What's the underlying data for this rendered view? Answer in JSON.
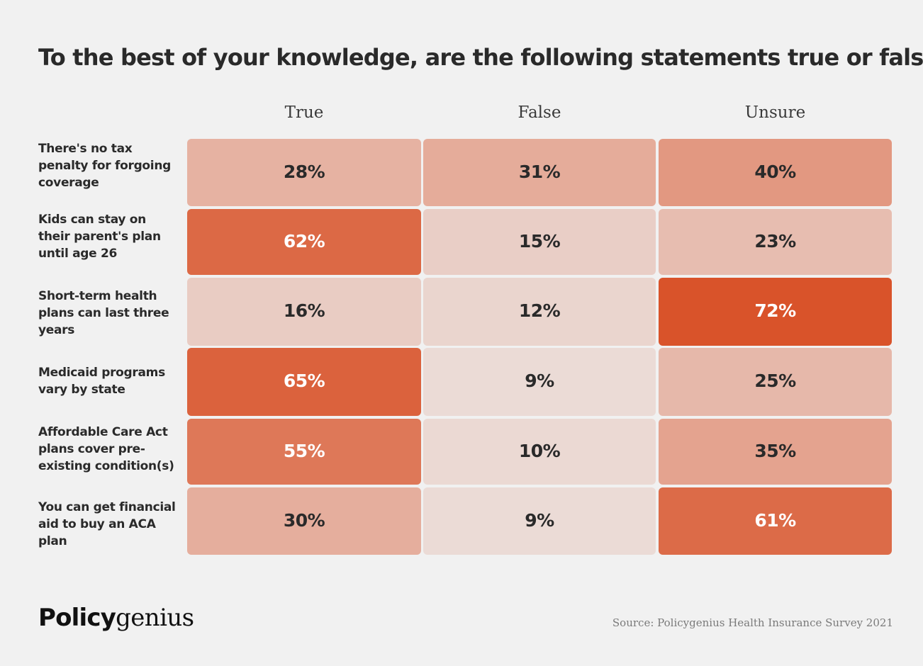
{
  "title": "To the best of your knowledge, are the following statements true or false?",
  "colors": {
    "background": "#f1f1f1",
    "accent": "#d9532a",
    "cell_min": "#ebdbd6",
    "text_dark": "#2a2a2a",
    "text_light": "#ffffff"
  },
  "chart_data": {
    "type": "heatmap",
    "title": "To the best of your knowledge, are the following statements true or false?",
    "columns": [
      "True",
      "False",
      "Unsure"
    ],
    "rows": [
      {
        "label": "There's no tax penalty for forgoing coverage",
        "values": [
          "28%",
          "31%",
          "40%"
        ],
        "numbers": [
          28,
          31,
          40
        ]
      },
      {
        "label": "Kids can stay on their parent's plan until age 26",
        "values": [
          "62%",
          "15%",
          "23%"
        ],
        "numbers": [
          62,
          15,
          23
        ]
      },
      {
        "label": "Short-term health plans can last three years",
        "values": [
          "16%",
          "12%",
          "72%"
        ],
        "numbers": [
          16,
          12,
          72
        ]
      },
      {
        "label": "Medicaid programs vary by state",
        "values": [
          "65%",
          "9%",
          "25%"
        ],
        "numbers": [
          65,
          9,
          25
        ]
      },
      {
        "label": "Affordable Care Act plans cover pre-existing condition(s)",
        "values": [
          "55%",
          "10%",
          "35%"
        ],
        "numbers": [
          55,
          10,
          35
        ]
      },
      {
        "label": "You can get financial aid to buy an ACA plan",
        "values": [
          "30%",
          "9%",
          "61%"
        ],
        "numbers": [
          30,
          9,
          61
        ]
      }
    ]
  },
  "footer": {
    "logo_bold": "Policy",
    "logo_light": "genius",
    "source": "Source: Policygenius Health Insurance Survey 2021"
  }
}
